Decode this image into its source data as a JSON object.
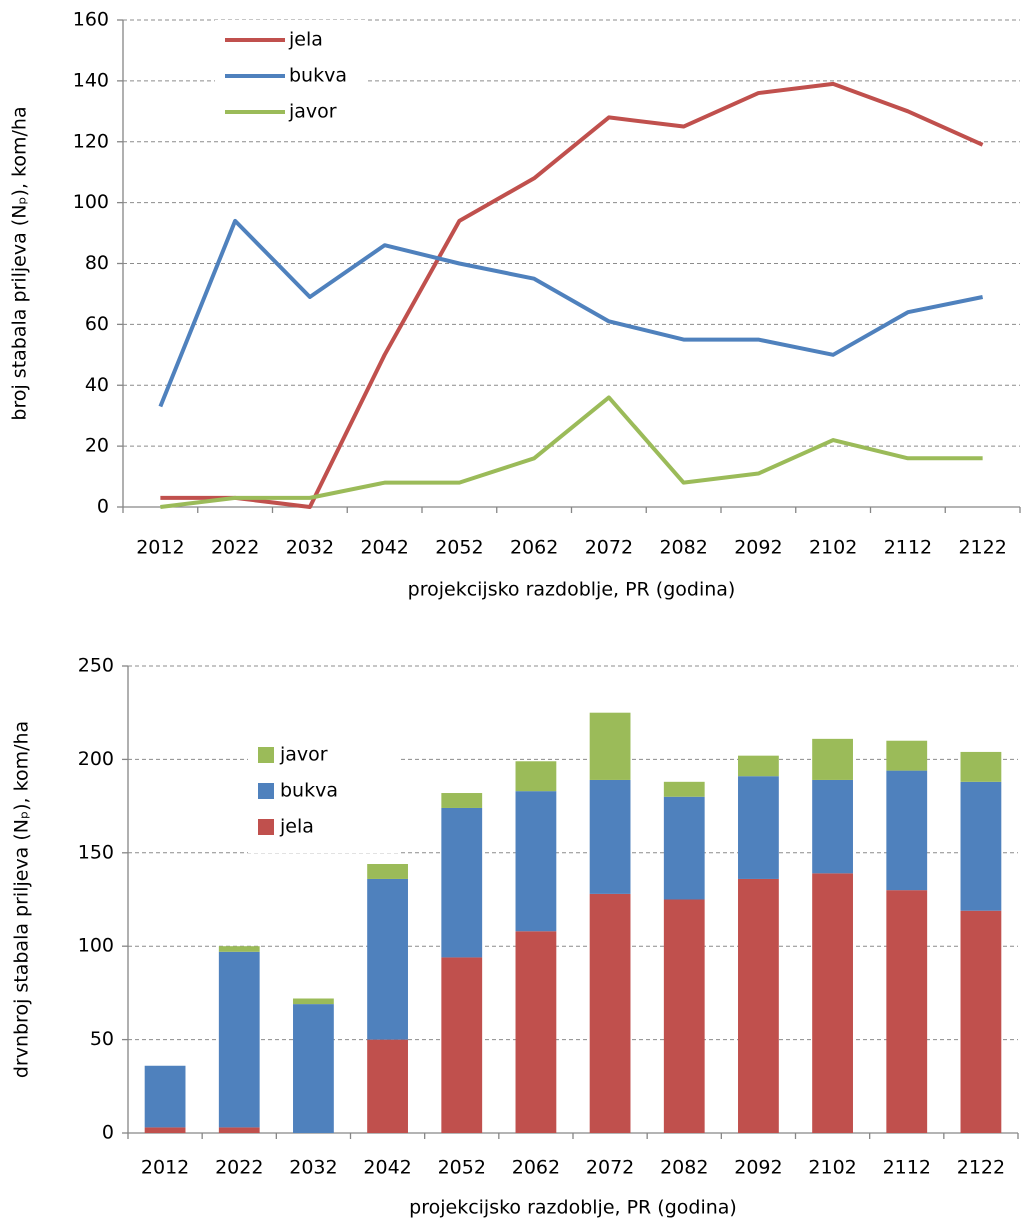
{
  "chart_data": [
    {
      "type": "line",
      "y_label": "broj stabala priljeva (Nₚ), kom/ha",
      "x_label": "projekcijsko razdoblje, PR (godina)",
      "categories": [
        "2012",
        "2022",
        "2032",
        "2042",
        "2052",
        "2062",
        "2072",
        "2082",
        "2092",
        "2102",
        "2112",
        "2122"
      ],
      "series": [
        {
          "name": "jela",
          "color": "#c0504d",
          "values": [
            3,
            3,
            0,
            50,
            94,
            108,
            128,
            125,
            136,
            139,
            130,
            119
          ]
        },
        {
          "name": "bukva",
          "color": "#4f81bd",
          "values": [
            33,
            94,
            69,
            86,
            80,
            75,
            61,
            55,
            55,
            50,
            64,
            69
          ]
        },
        {
          "name": "javor",
          "color": "#9bbb59",
          "values": [
            0,
            3,
            3,
            8,
            8,
            16,
            36,
            8,
            11,
            22,
            16,
            16
          ]
        }
      ],
      "ylim": [
        0,
        160
      ],
      "yticks": [
        0,
        20,
        40,
        60,
        80,
        100,
        120,
        140,
        160
      ],
      "grid": true,
      "legend": "upper left"
    },
    {
      "type": "bar",
      "stacked": true,
      "y_label": "drvnbroj stabala priljeva (Nₚ), kom/ha",
      "x_label": "projekcijsko razdoblje, PR (godina)",
      "categories": [
        "2012",
        "2022",
        "2032",
        "2042",
        "2052",
        "2062",
        "2072",
        "2082",
        "2092",
        "2102",
        "2112",
        "2122"
      ],
      "series": [
        {
          "name": "jela",
          "color": "#c0504d",
          "values": [
            3,
            3,
            0,
            50,
            94,
            108,
            128,
            125,
            136,
            139,
            130,
            119
          ]
        },
        {
          "name": "bukva",
          "color": "#4f81bd",
          "values": [
            33,
            94,
            69,
            86,
            80,
            75,
            61,
            55,
            55,
            50,
            64,
            69
          ]
        },
        {
          "name": "javor",
          "color": "#9bbb59",
          "values": [
            0,
            3,
            3,
            8,
            8,
            16,
            36,
            8,
            11,
            22,
            16,
            16
          ]
        }
      ],
      "ylim": [
        0,
        250
      ],
      "yticks": [
        0,
        50,
        100,
        150,
        200,
        250
      ],
      "grid": true,
      "legend": "upper left"
    }
  ]
}
